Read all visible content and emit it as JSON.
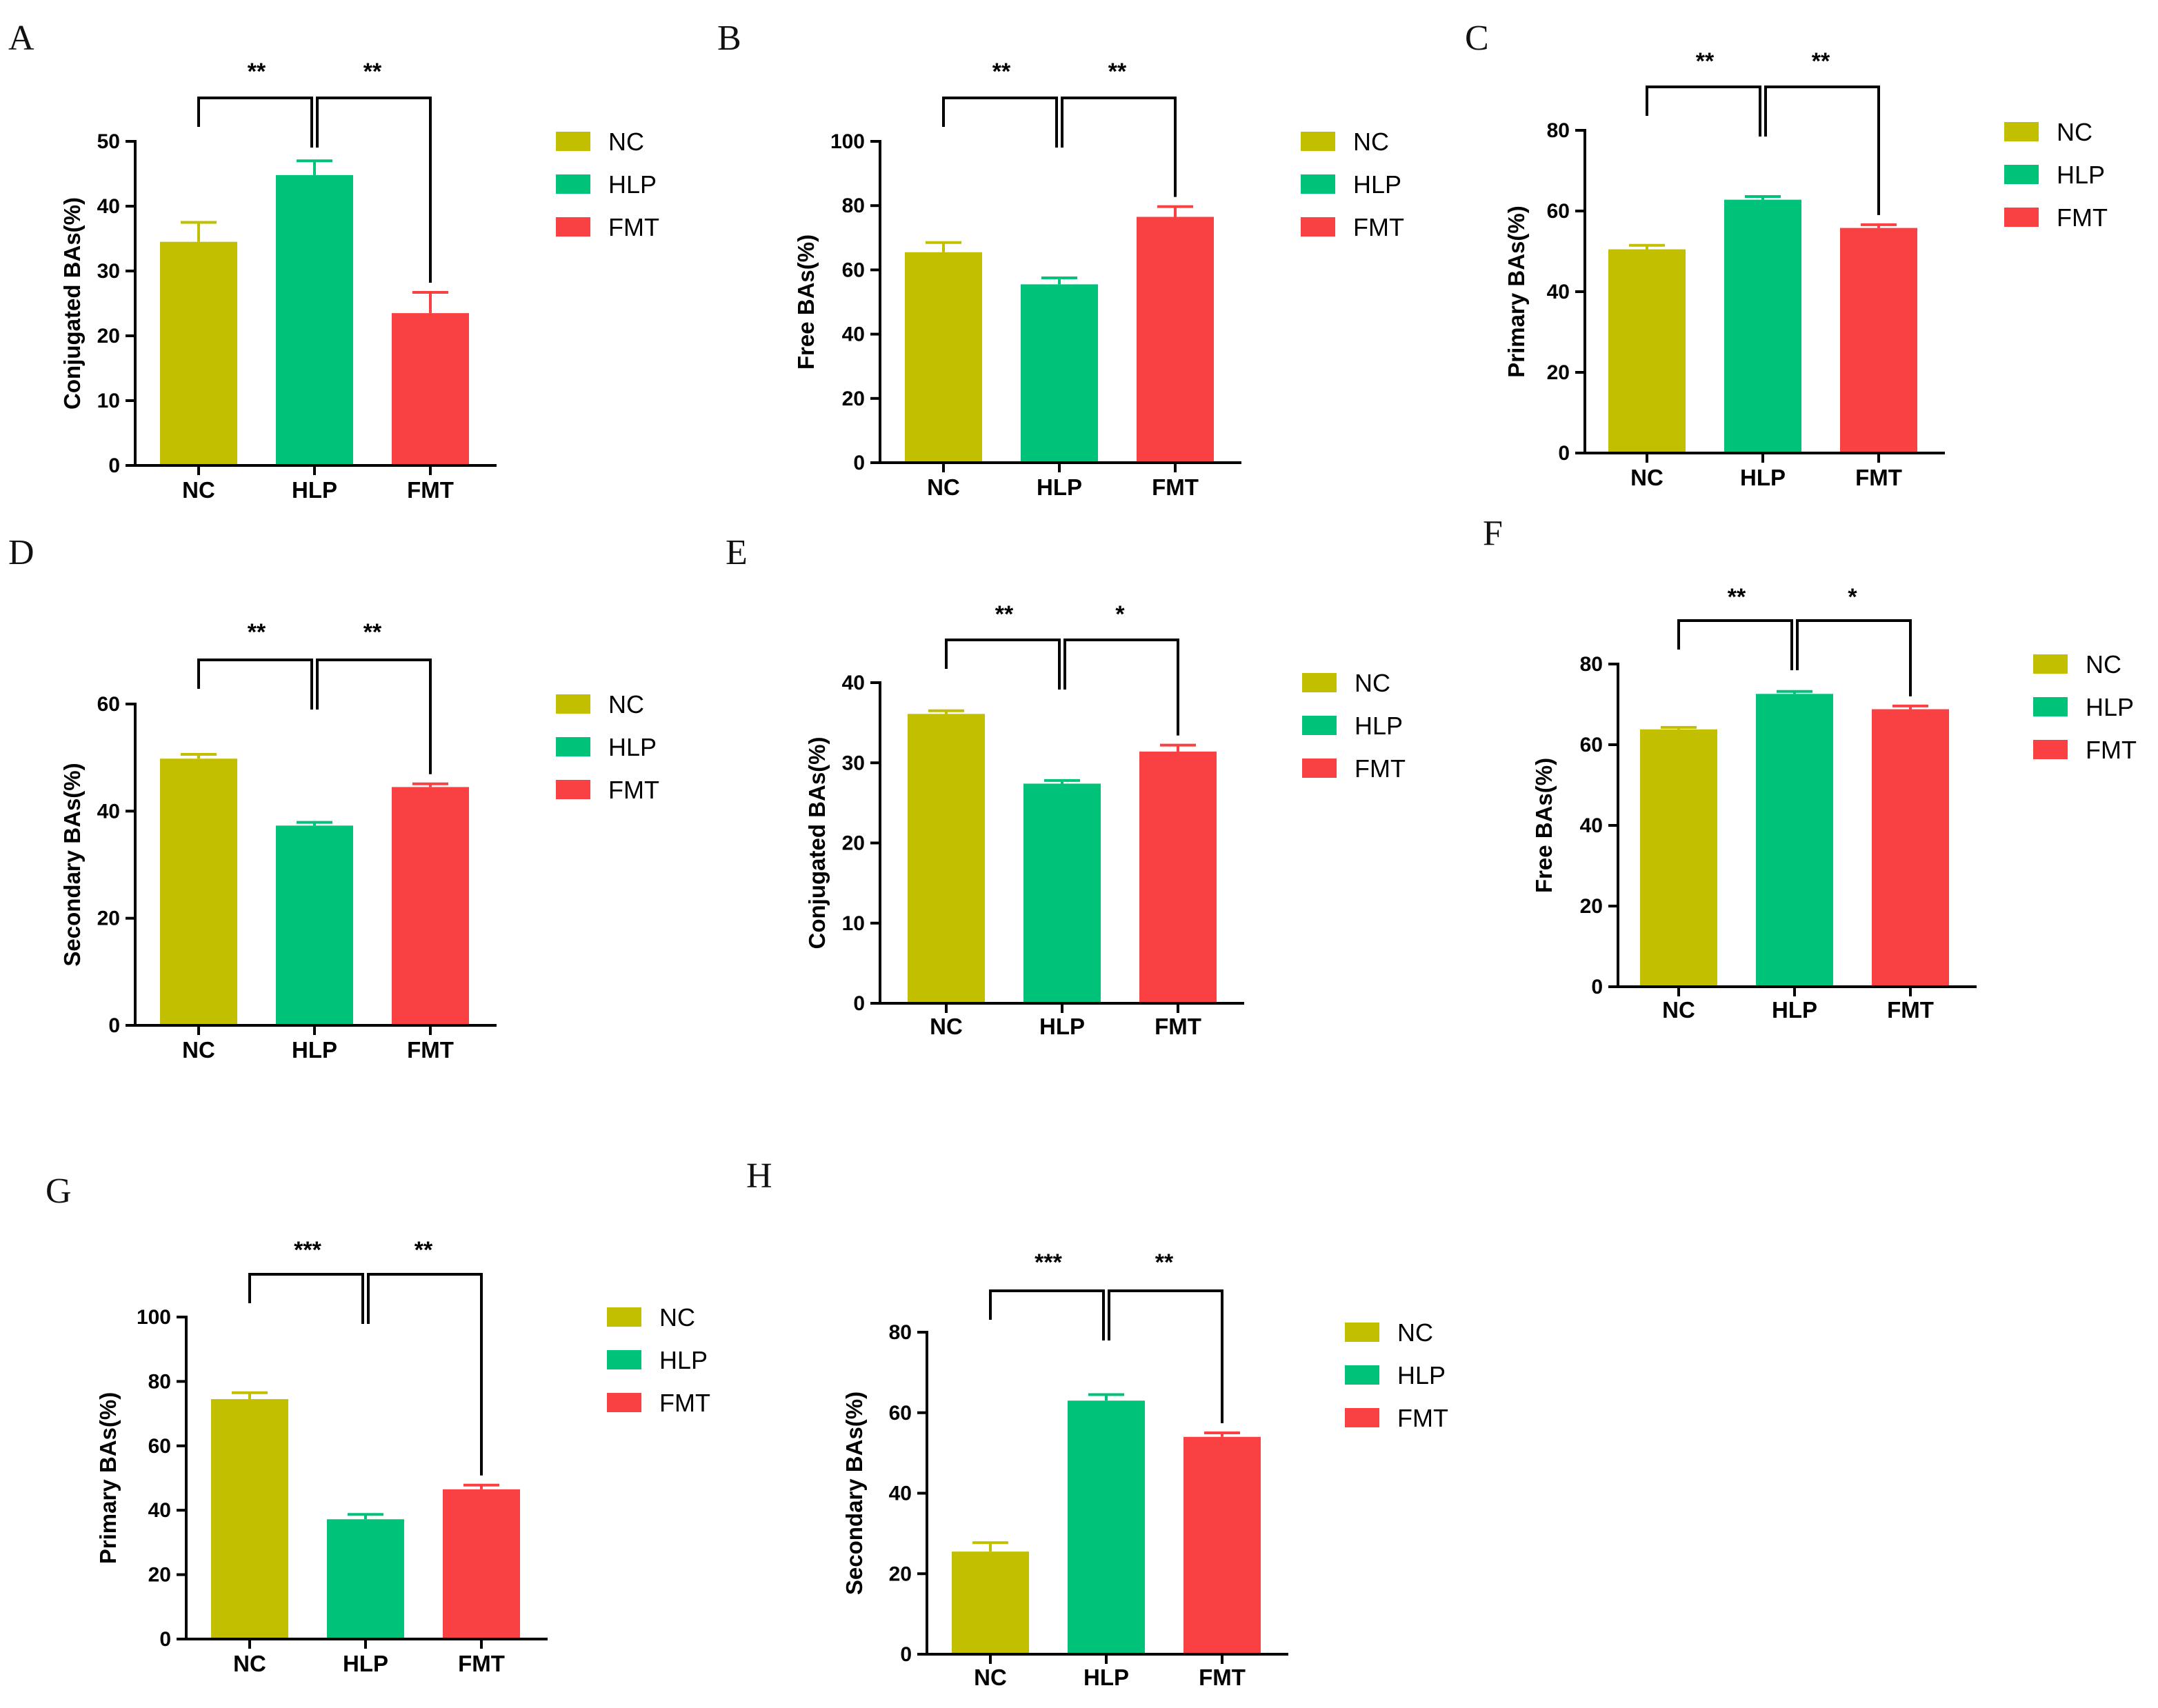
{
  "colors": {
    "NC": "#c2bf00",
    "HLP": "#00c279",
    "FMT": "#f94144"
  },
  "legend": [
    "NC",
    "HLP",
    "FMT"
  ],
  "chart_data": [
    {
      "panel": "A",
      "type": "bar",
      "categories": [
        "NC",
        "HLP",
        "FMT"
      ],
      "values": [
        34.5,
        44.8,
        23.5
      ],
      "errors": [
        3.0,
        2.2,
        3.2
      ],
      "ylabel": "Conjugated BAs(%)",
      "ylim": [
        0,
        50
      ],
      "yticks": [
        0,
        10,
        20,
        30,
        40,
        50
      ],
      "significance": [
        "**",
        "**"
      ]
    },
    {
      "panel": "B",
      "type": "bar",
      "categories": [
        "NC",
        "HLP",
        "FMT"
      ],
      "values": [
        65.5,
        55.5,
        76.5
      ],
      "errors": [
        3.0,
        2.0,
        3.2
      ],
      "ylabel": "Free BAs(%)",
      "ylim": [
        0,
        100
      ],
      "yticks": [
        0,
        20,
        40,
        60,
        80,
        100
      ],
      "significance": [
        "**",
        "**"
      ]
    },
    {
      "panel": "C",
      "type": "bar",
      "categories": [
        "NC",
        "HLP",
        "FMT"
      ],
      "values": [
        50.5,
        62.8,
        55.8
      ],
      "errors": [
        1.0,
        0.8,
        0.8
      ],
      "ylabel": "Primary BAs(%)",
      "ylim": [
        0,
        80
      ],
      "yticks": [
        0,
        20,
        40,
        60,
        80
      ],
      "significance": [
        "**",
        "**"
      ]
    },
    {
      "panel": "D",
      "type": "bar",
      "categories": [
        "NC",
        "HLP",
        "FMT"
      ],
      "values": [
        49.8,
        37.3,
        44.5
      ],
      "errors": [
        0.8,
        0.6,
        0.6
      ],
      "ylabel": "Secondary BAs(%)",
      "ylim": [
        0,
        60
      ],
      "yticks": [
        0,
        20,
        40,
        60
      ],
      "significance": [
        "**",
        "**"
      ]
    },
    {
      "panel": "E",
      "type": "bar",
      "categories": [
        "NC",
        "HLP",
        "FMT"
      ],
      "values": [
        36.1,
        27.4,
        31.4
      ],
      "errors": [
        0.4,
        0.4,
        0.8
      ],
      "ylabel": "Conjugated BAs(%)",
      "ylim": [
        0,
        40
      ],
      "yticks": [
        0,
        10,
        20,
        30,
        40
      ],
      "significance": [
        "**",
        "*"
      ]
    },
    {
      "panel": "F",
      "type": "bar",
      "categories": [
        "NC",
        "HLP",
        "FMT"
      ],
      "values": [
        63.8,
        72.6,
        68.8
      ],
      "errors": [
        0.5,
        0.6,
        0.8
      ],
      "ylabel": "Free BAs(%)",
      "ylim": [
        0,
        80
      ],
      "yticks": [
        0,
        20,
        40,
        60,
        80
      ],
      "significance": [
        "**",
        "*"
      ]
    },
    {
      "panel": "G",
      "type": "bar",
      "categories": [
        "NC",
        "HLP",
        "FMT"
      ],
      "values": [
        74.5,
        37.2,
        46.5
      ],
      "errors": [
        2.0,
        1.5,
        1.3
      ],
      "ylabel": "Primary BAs(%)",
      "ylim": [
        0,
        100
      ],
      "yticks": [
        0,
        20,
        40,
        60,
        80,
        100
      ],
      "significance": [
        "***",
        "**"
      ]
    },
    {
      "panel": "H",
      "type": "bar",
      "categories": [
        "NC",
        "HLP",
        "FMT"
      ],
      "values": [
        25.5,
        63.0,
        54.0
      ],
      "errors": [
        2.2,
        1.5,
        1.0
      ],
      "ylabel": "Secondary BAs(%)",
      "ylim": [
        0,
        80
      ],
      "yticks": [
        0,
        20,
        40,
        60,
        80
      ],
      "significance": [
        "***",
        "**"
      ]
    }
  ]
}
